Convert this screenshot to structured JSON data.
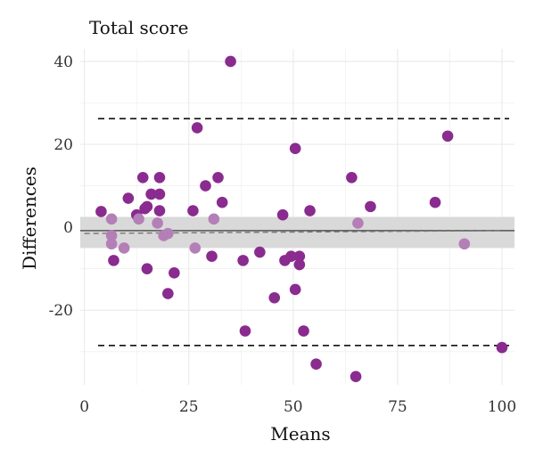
{
  "chart_data": {
    "type": "scatter",
    "title": "Total score",
    "xlabel": "Means",
    "ylabel": "Differences",
    "xlim": [
      -1,
      103
    ],
    "ylim": [
      -38,
      43
    ],
    "x_ticks": [
      0,
      25,
      50,
      75,
      100
    ],
    "y_ticks": [
      -20,
      0,
      20,
      40
    ],
    "x_tick_labels": [
      "0",
      "25",
      "50",
      "75",
      "100"
    ],
    "y_tick_labels": [
      "-20",
      "0",
      "20",
      "40"
    ],
    "grid": true,
    "mean_line": -0.8,
    "upper_limit": 26.2,
    "lower_limit": -28.5,
    "band": [
      -5,
      2.5
    ],
    "trend_line": [
      [
        0,
        -1.5
      ],
      [
        100,
        -0.8
      ]
    ],
    "colors": {
      "point": "#8a2b8f",
      "point_light": "#b47fb7",
      "band": "#d9d9d9",
      "grid": "#ebebeb",
      "line": "#555555"
    },
    "points": [
      {
        "x": 4,
        "y": 3.8
      },
      {
        "x": 6.5,
        "y": 2
      },
      {
        "x": 6.5,
        "y": -2
      },
      {
        "x": 6.5,
        "y": -4
      },
      {
        "x": 7,
        "y": -8
      },
      {
        "x": 9.5,
        "y": -5
      },
      {
        "x": 10.5,
        "y": 7
      },
      {
        "x": 12.5,
        "y": 3
      },
      {
        "x": 13,
        "y": 2
      },
      {
        "x": 14,
        "y": 12
      },
      {
        "x": 14.5,
        "y": 4.5
      },
      {
        "x": 15,
        "y": 5
      },
      {
        "x": 15,
        "y": -10
      },
      {
        "x": 16,
        "y": 8
      },
      {
        "x": 17.5,
        "y": 1
      },
      {
        "x": 18,
        "y": 12
      },
      {
        "x": 18,
        "y": 8
      },
      {
        "x": 18,
        "y": 4
      },
      {
        "x": 19,
        "y": -2
      },
      {
        "x": 20,
        "y": -1.5
      },
      {
        "x": 20,
        "y": -16
      },
      {
        "x": 21.5,
        "y": -11
      },
      {
        "x": 26,
        "y": 4
      },
      {
        "x": 26.5,
        "y": -5
      },
      {
        "x": 27,
        "y": 24
      },
      {
        "x": 29,
        "y": 10
      },
      {
        "x": 30.5,
        "y": -7
      },
      {
        "x": 31,
        "y": 2
      },
      {
        "x": 32,
        "y": 12
      },
      {
        "x": 33,
        "y": 6
      },
      {
        "x": 35,
        "y": 40
      },
      {
        "x": 38,
        "y": -8
      },
      {
        "x": 38.5,
        "y": -25
      },
      {
        "x": 42,
        "y": -6
      },
      {
        "x": 45.5,
        "y": -17
      },
      {
        "x": 47.5,
        "y": 3
      },
      {
        "x": 48,
        "y": -8
      },
      {
        "x": 49.5,
        "y": -7
      },
      {
        "x": 50.5,
        "y": 19
      },
      {
        "x": 50.5,
        "y": -15
      },
      {
        "x": 51.5,
        "y": -7
      },
      {
        "x": 51.5,
        "y": -9
      },
      {
        "x": 52.5,
        "y": -25
      },
      {
        "x": 54,
        "y": 4
      },
      {
        "x": 55.5,
        "y": -33
      },
      {
        "x": 64,
        "y": 12
      },
      {
        "x": 65,
        "y": -36
      },
      {
        "x": 65.5,
        "y": 1
      },
      {
        "x": 68.5,
        "y": 5
      },
      {
        "x": 84,
        "y": 6
      },
      {
        "x": 87,
        "y": 22
      },
      {
        "x": 91,
        "y": -4
      },
      {
        "x": 100,
        "y": -29
      }
    ]
  }
}
